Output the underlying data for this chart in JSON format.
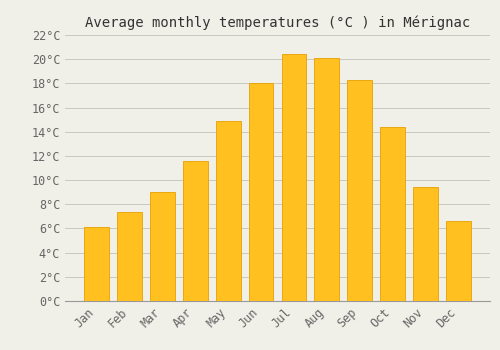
{
  "title": "Average monthly temperatures (°C ) in Mérignac",
  "months": [
    "Jan",
    "Feb",
    "Mar",
    "Apr",
    "May",
    "Jun",
    "Jul",
    "Aug",
    "Sep",
    "Oct",
    "Nov",
    "Dec"
  ],
  "values": [
    6.1,
    7.4,
    9.0,
    11.6,
    14.9,
    18.0,
    20.4,
    20.1,
    18.3,
    14.4,
    9.4,
    6.6
  ],
  "bar_color_face": "#FFC020",
  "bar_color_edge": "#E8A000",
  "ylim": [
    0,
    22
  ],
  "yticks": [
    0,
    2,
    4,
    6,
    8,
    10,
    12,
    14,
    16,
    18,
    20,
    22
  ],
  "ytick_labels": [
    "0°C",
    "2°C",
    "4°C",
    "6°C",
    "8°C",
    "10°C",
    "12°C",
    "14°C",
    "16°C",
    "18°C",
    "20°C",
    "22°C"
  ],
  "background_color": "#F0F0E8",
  "grid_color": "#C8C8C0",
  "title_fontsize": 10,
  "tick_fontsize": 8.5,
  "font_family": "monospace",
  "bar_width": 0.75
}
